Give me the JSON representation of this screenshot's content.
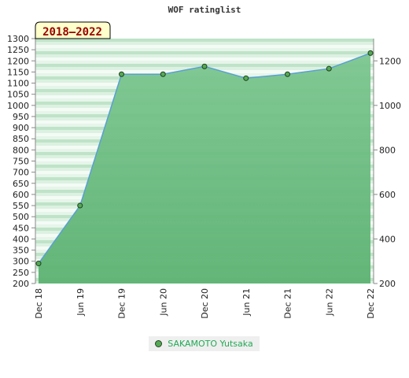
{
  "chart_data": {
    "type": "area",
    "title": "WOF ratinglist",
    "period_label": "2018–2022",
    "categories": [
      "Dec 18",
      "Jun 19",
      "Dec 19",
      "Jun 20",
      "Dec 20",
      "Jun 21",
      "Dec 21",
      "Jun 22",
      "Dec 22"
    ],
    "series": [
      {
        "name": "SAKAMOTO Yutsaka",
        "values": [
          290,
          550,
          1140,
          1140,
          1175,
          1122,
          1140,
          1165,
          1235
        ]
      }
    ],
    "y_left": {
      "min": 200,
      "max": 1300,
      "ticks": [
        200,
        250,
        300,
        350,
        400,
        450,
        500,
        550,
        600,
        650,
        700,
        750,
        800,
        850,
        900,
        950,
        1000,
        1050,
        1100,
        1150,
        1200,
        1250,
        1300
      ]
    },
    "y_right": {
      "ticks": [
        200,
        400,
        600,
        800,
        1000,
        1200
      ]
    },
    "grid": true,
    "legend_position": "bottom",
    "colors": {
      "line": "#5a9fd4",
      "fill": "#66bb7a",
      "marker": "#55aa55",
      "legend_text": "#22aa55"
    }
  }
}
